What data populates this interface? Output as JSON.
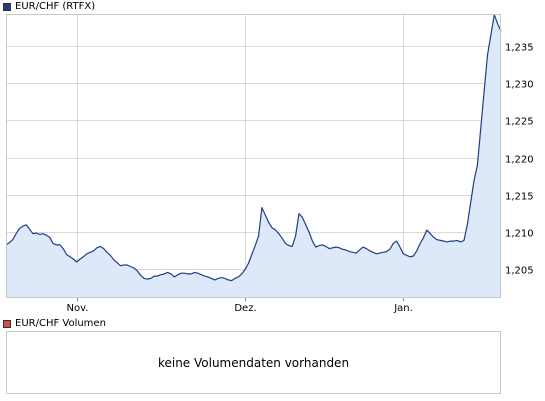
{
  "price_legend": {
    "label": "EUR/CHF (RTFX)",
    "color": "#1f3f7f"
  },
  "volume_legend": {
    "label": "EUR/CHF Volumen",
    "color": "#d94a4a"
  },
  "volume_message": "keine Volumendaten vorhanden",
  "chart_data": {
    "type": "area",
    "title": "",
    "xlabel": "",
    "ylabel": "",
    "x_tick_labels": [
      "Nov.",
      "Dez.",
      "Jan."
    ],
    "x_tick_at_index": [
      21,
      71,
      118
    ],
    "y_ticks": [
      1.205,
      1.21,
      1.215,
      1.22,
      1.225,
      1.23,
      1.235
    ],
    "y_tick_labels": [
      "1,205",
      "1,210",
      "1,215",
      "1,220",
      "1,225",
      "1,230",
      "1,235"
    ],
    "ylim": [
      1.2013,
      1.2393
    ],
    "grid": true,
    "line_color": "#1f3f7f",
    "fill_color": "#dde9f9",
    "series": [
      {
        "values": [
          1.2083,
          1.2086,
          1.209,
          1.2098,
          1.2105,
          1.2108,
          1.211,
          1.2104,
          1.2098,
          1.2099,
          1.2097,
          1.2098,
          1.2096,
          1.2093,
          1.2085,
          1.2083,
          1.2083,
          1.2078,
          1.207,
          1.2067,
          1.2064,
          1.206,
          1.2064,
          1.2067,
          1.2071,
          1.2073,
          1.2075,
          1.2079,
          1.2081,
          1.2078,
          1.2073,
          1.2069,
          1.2063,
          1.2059,
          1.2055,
          1.2056,
          1.2056,
          1.2054,
          1.2052,
          1.2048,
          1.2042,
          1.2038,
          1.2037,
          1.2038,
          1.2041,
          1.2041,
          1.2043,
          1.2044,
          1.2046,
          1.2044,
          1.204,
          1.2043,
          1.2045,
          1.2045,
          1.2044,
          1.2044,
          1.2046,
          1.2045,
          1.2043,
          1.2041,
          1.204,
          1.2038,
          1.2036,
          1.2038,
          1.2039,
          1.2038,
          1.2036,
          1.2035,
          1.2038,
          1.204,
          1.2044,
          1.205,
          1.2058,
          1.207,
          1.2082,
          1.2095,
          1.2133,
          1.2123,
          1.2113,
          1.2106,
          1.2103,
          1.2098,
          1.2092,
          1.2085,
          1.2082,
          1.2081,
          1.2095,
          1.2125,
          1.212,
          1.211,
          1.21,
          1.2088,
          1.208,
          1.2082,
          1.2083,
          1.2081,
          1.2078,
          1.2079,
          1.208,
          1.2079,
          1.2077,
          1.2076,
          1.2074,
          1.2073,
          1.2072,
          1.2076,
          1.208,
          1.2078,
          1.2075,
          1.2073,
          1.2071,
          1.2072,
          1.2073,
          1.2074,
          1.2077,
          1.2085,
          1.2088,
          1.208,
          1.2071,
          1.2069,
          1.2067,
          1.2068,
          1.2075,
          1.2085,
          1.2093,
          1.2103,
          1.2098,
          1.2093,
          1.209,
          1.2089,
          1.2088,
          1.2087,
          1.2088,
          1.2088,
          1.2089,
          1.2087,
          1.2089,
          1.211,
          1.214,
          1.217,
          1.219,
          1.224,
          1.229,
          1.2338,
          1.2365,
          1.2392,
          1.238,
          1.237
        ]
      }
    ]
  }
}
